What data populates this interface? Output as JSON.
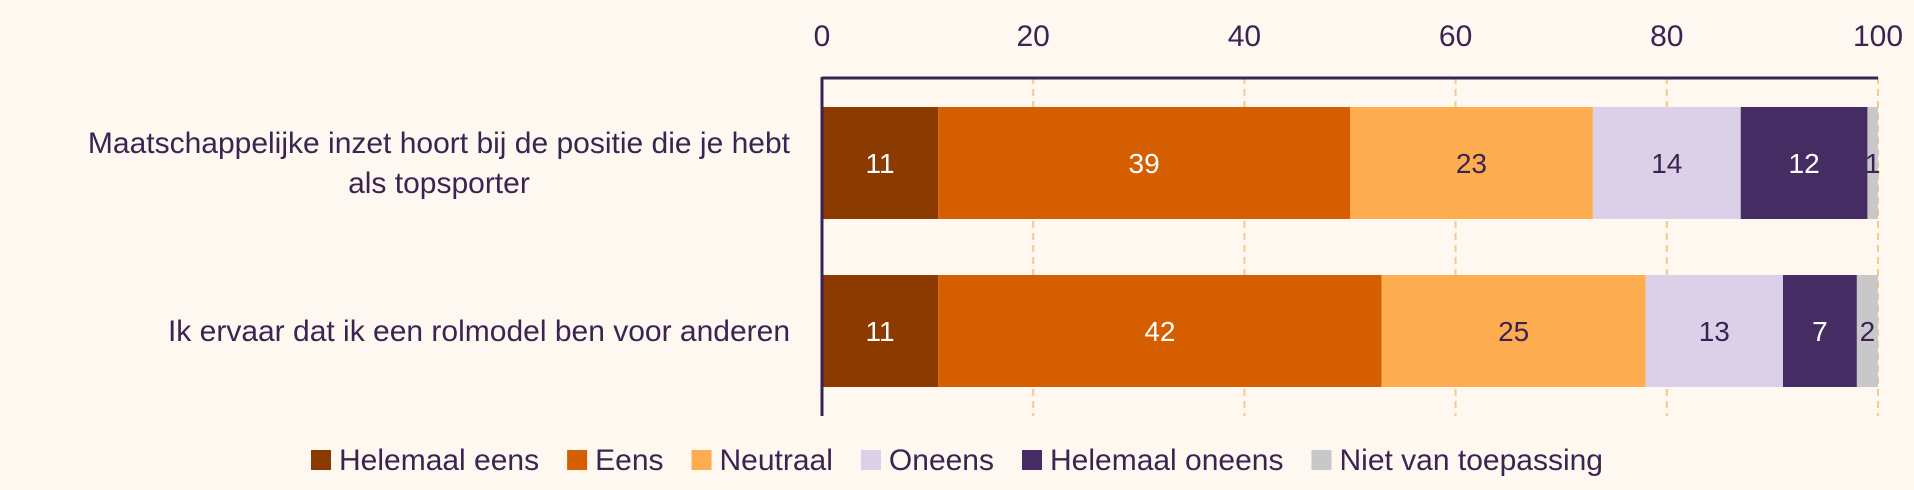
{
  "chart_data": {
    "type": "bar",
    "orientation": "horizontal",
    "stacked": true,
    "categories": [
      "Maatschappelijke inzet hoort bij de positie die je hebt als topsporter",
      "Ik ervaar dat ik een rolmodel ben voor anderen"
    ],
    "series": [
      {
        "name": "Helemaal eens",
        "color": "#8b3a00",
        "label_color": "#ffffff",
        "values": [
          11,
          11
        ]
      },
      {
        "name": "Eens",
        "color": "#d55e00",
        "label_color": "#ffffff",
        "values": [
          39,
          42
        ]
      },
      {
        "name": "Neutraal",
        "color": "#fdac4f",
        "label_color": "#3b2352",
        "values": [
          23,
          25
        ]
      },
      {
        "name": "Oneens",
        "color": "#dcd0e9",
        "label_color": "#3b2352",
        "values": [
          14,
          13
        ]
      },
      {
        "name": "Helemaal oneens",
        "color": "#452c63",
        "label_color": "#ffffff",
        "values": [
          12,
          7
        ]
      },
      {
        "name": "Niet van toepassing",
        "color": "#c8c8c8",
        "label_color": "#3b2352",
        "values": [
          1,
          2
        ]
      }
    ],
    "xlim": [
      0,
      100
    ],
    "xticks": [
      0,
      20,
      40,
      60,
      80,
      100
    ],
    "grid": true,
    "legend_position": "bottom",
    "text_color": "#3b2352",
    "grid_color": "#f5c98a",
    "background": "#fef8f1"
  }
}
